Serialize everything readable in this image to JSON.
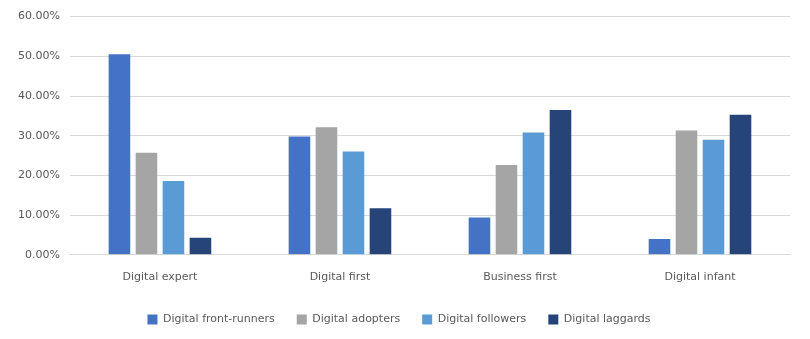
{
  "chart_data": {
    "type": "bar",
    "categories": [
      "Digital expert",
      "Digital first",
      "Business first",
      "Digital infant"
    ],
    "series": [
      {
        "name": "Digital front-runners",
        "color": "#4472c4",
        "values": [
          50.5,
          29.8,
          9.4,
          4.0
        ]
      },
      {
        "name": "Digital adopters",
        "color": "#a5a5a5",
        "values": [
          25.7,
          32.1,
          22.6,
          31.3
        ]
      },
      {
        "name": "Digital followers",
        "color": "#5b9bd5",
        "values": [
          18.6,
          26.0,
          30.8,
          29.0
        ]
      },
      {
        "name": "Digital laggards",
        "color": "#264478",
        "values": [
          4.3,
          11.7,
          36.5,
          35.3
        ]
      }
    ],
    "ylim": [
      0,
      60
    ],
    "yticks": [
      {
        "value": 0,
        "label": "0.00%"
      },
      {
        "value": 10,
        "label": "10.00%"
      },
      {
        "value": 20,
        "label": "20.00%"
      },
      {
        "value": 30,
        "label": "30.00%"
      },
      {
        "value": 40,
        "label": "40.00%"
      },
      {
        "value": 50,
        "label": "50.00%"
      },
      {
        "value": 60,
        "label": "60.00%"
      }
    ],
    "grid": true,
    "legend": "bottom"
  }
}
